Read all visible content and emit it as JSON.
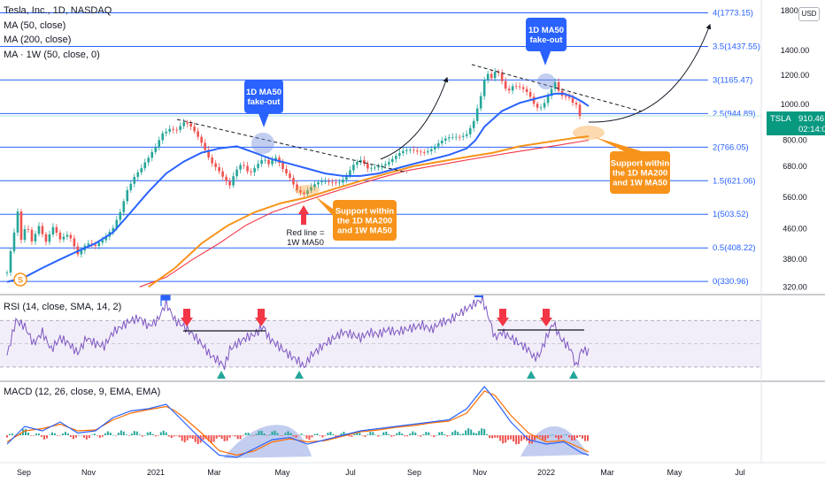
{
  "legend": {
    "symbol": "Tesla, Inc., 1D, NASDAQ",
    "ma50": "MA (50, close)",
    "ma200": "MA (200, close)",
    "ma1w": "MA · 1W (50, close, 0)"
  },
  "currency": "USD",
  "price_tag": {
    "symbol": "TSLA",
    "price": "910.46",
    "countdown": "02:14:05"
  },
  "colors": {
    "ma50": "#2962ff",
    "ma200": "#f23645",
    "ma1w": "#f7931a",
    "candle_up": "#26a69a",
    "candle_down": "#ef5350",
    "fib": "#2962ff",
    "rsi": "#7e57c2",
    "macd": "#2962ff",
    "signal": "#ff6d00"
  },
  "annotations": {
    "fakeout_left": [
      "1D MA50",
      "fake-out"
    ],
    "fakeout_right": [
      "1D MA50",
      "fake-out"
    ],
    "support_mid": [
      "Support within",
      "the 1D MA200",
      "and 1W MA50"
    ],
    "support_right": [
      "Support within",
      "the 1D MA200",
      "and 1W MA50"
    ],
    "red_line": [
      "Red line =",
      "1W MA50"
    ],
    "dividend_marker": "S"
  },
  "chart_data": [
    {
      "type": "candlestick",
      "title": "Tesla, Inc., 1D, NASDAQ",
      "scale": "log",
      "ylim": [
        310,
        1900
      ],
      "x_ticks": [
        "Sep",
        "Nov",
        "2021",
        "Mar",
        "May",
        "Jul",
        "Sep",
        "Nov",
        "2022",
        "Mar",
        "May",
        "Jul"
      ],
      "y_ticks": [
        "1800.00",
        "1400.00",
        "1200.00",
        "1000.00",
        "800.00",
        "680.00",
        "560.00",
        "460.00",
        "380.00",
        "320.00"
      ],
      "last_price": 910.46,
      "fib_levels": [
        {
          "label": "4(1773.15)",
          "value": 1773.15
        },
        {
          "label": "3.5(1437.55)",
          "value": 1437.55
        },
        {
          "label": "3(1165.47)",
          "value": 1165.47
        },
        {
          "label": "2.5(944.89)",
          "value": 944.89
        },
        {
          "label": "2(766.05)",
          "value": 766.05
        },
        {
          "label": "1.5(621.06)",
          "value": 621.06
        },
        {
          "label": "1(503.52)",
          "value": 503.52
        },
        {
          "label": "0.5(408.22)",
          "value": 408.22
        },
        {
          "label": "0(330.96)",
          "value": 330.96
        }
      ],
      "price_path": [
        [
          0,
          350
        ],
        [
          8,
          440
        ],
        [
          12,
          500
        ],
        [
          16,
          420
        ],
        [
          22,
          470
        ],
        [
          28,
          430
        ],
        [
          36,
          480
        ],
        [
          44,
          430
        ],
        [
          52,
          460
        ],
        [
          60,
          420
        ],
        [
          70,
          440
        ],
        [
          80,
          400
        ],
        [
          90,
          430
        ],
        [
          100,
          410
        ],
        [
          110,
          420
        ],
        [
          120,
          460
        ],
        [
          128,
          520
        ],
        [
          136,
          600
        ],
        [
          144,
          640
        ],
        [
          152,
          660
        ],
        [
          160,
          700
        ],
        [
          168,
          760
        ],
        [
          176,
          850
        ],
        [
          184,
          880
        ],
        [
          192,
          860
        ],
        [
          200,
          880
        ],
        [
          206,
          860
        ],
        [
          214,
          820
        ],
        [
          222,
          780
        ],
        [
          230,
          720
        ],
        [
          238,
          680
        ],
        [
          246,
          620
        ],
        [
          252,
          590
        ],
        [
          258,
          640
        ],
        [
          266,
          690
        ],
        [
          274,
          660
        ],
        [
          282,
          700
        ],
        [
          290,
          720
        ],
        [
          296,
          680
        ],
        [
          304,
          700
        ],
        [
          312,
          660
        ],
        [
          320,
          640
        ],
        [
          328,
          600
        ],
        [
          336,
          580
        ],
        [
          344,
          590
        ],
        [
          352,
          600
        ],
        [
          360,
          610
        ],
        [
          368,
          620
        ],
        [
          376,
          630
        ],
        [
          384,
          650
        ],
        [
          392,
          680
        ],
        [
          400,
          690
        ],
        [
          408,
          660
        ],
        [
          416,
          680
        ],
        [
          424,
          700
        ],
        [
          432,
          710
        ],
        [
          440,
          720
        ],
        [
          448,
          730
        ],
        [
          456,
          740
        ],
        [
          464,
          750
        ],
        [
          472,
          760
        ],
        [
          480,
          770
        ],
        [
          488,
          780
        ],
        [
          496,
          790
        ],
        [
          504,
          800
        ],
        [
          512,
          820
        ],
        [
          520,
          850
        ],
        [
          528,
          920
        ],
        [
          536,
          1050
        ],
        [
          542,
          1200
        ],
        [
          548,
          1150
        ],
        [
          554,
          1230
        ],
        [
          560,
          1160
        ],
        [
          566,
          1100
        ],
        [
          572,
          1150
        ],
        [
          578,
          1140
        ],
        [
          584,
          1100
        ],
        [
          590,
          1050
        ],
        [
          596,
          980
        ],
        [
          602,
          950
        ],
        [
          608,
          1010
        ],
        [
          614,
          1100
        ],
        [
          620,
          1180
        ],
        [
          626,
          1080
        ],
        [
          632,
          1050
        ],
        [
          638,
          1020
        ],
        [
          642,
          960
        ],
        [
          646,
          990
        ],
        [
          650,
          830
        ],
        [
          654,
          940
        ],
        [
          658,
          910
        ]
      ],
      "ma50_path": [
        [
          0,
          330
        ],
        [
          20,
          340
        ],
        [
          40,
          360
        ],
        [
          60,
          380
        ],
        [
          80,
          400
        ],
        [
          100,
          420
        ],
        [
          120,
          450
        ],
        [
          140,
          510
        ],
        [
          160,
          580
        ],
        [
          180,
          650
        ],
        [
          200,
          700
        ],
        [
          220,
          740
        ],
        [
          240,
          760
        ],
        [
          260,
          770
        ],
        [
          280,
          740
        ],
        [
          300,
          710
        ],
        [
          320,
          690
        ],
        [
          340,
          670
        ],
        [
          360,
          650
        ],
        [
          380,
          640
        ],
        [
          400,
          640
        ],
        [
          420,
          650
        ],
        [
          440,
          670
        ],
        [
          460,
          690
        ],
        [
          480,
          710
        ],
        [
          500,
          730
        ],
        [
          520,
          760
        ],
        [
          530,
          800
        ],
        [
          540,
          870
        ],
        [
          560,
          960
        ],
        [
          580,
          1010
        ],
        [
          600,
          1040
        ],
        [
          620,
          1070
        ],
        [
          630,
          1070
        ],
        [
          640,
          1050
        ],
        [
          650,
          1020
        ],
        [
          658,
          990
        ]
      ],
      "ma200_path": [
        [
          150,
          320
        ],
        [
          180,
          340
        ],
        [
          210,
          380
        ],
        [
          240,
          420
        ],
        [
          270,
          470
        ],
        [
          300,
          510
        ],
        [
          330,
          540
        ],
        [
          360,
          570
        ],
        [
          390,
          600
        ],
        [
          420,
          630
        ],
        [
          450,
          660
        ],
        [
          480,
          680
        ],
        [
          510,
          700
        ],
        [
          540,
          720
        ],
        [
          570,
          740
        ],
        [
          600,
          760
        ],
        [
          630,
          780
        ],
        [
          658,
          800
        ]
      ],
      "ma1w_path": [
        [
          160,
          320
        ],
        [
          190,
          360
        ],
        [
          220,
          420
        ],
        [
          250,
          470
        ],
        [
          280,
          510
        ],
        [
          310,
          540
        ],
        [
          340,
          560
        ],
        [
          370,
          590
        ],
        [
          400,
          620
        ],
        [
          430,
          650
        ],
        [
          460,
          680
        ],
        [
          490,
          700
        ],
        [
          520,
          720
        ],
        [
          550,
          740
        ],
        [
          580,
          770
        ],
        [
          610,
          790
        ],
        [
          640,
          810
        ],
        [
          658,
          820
        ]
      ]
    },
    {
      "type": "line",
      "title": "RSI (14, close, SMA, 14, 2)",
      "ylim": [
        20,
        90
      ],
      "y_ticks": [
        "75.00",
        "50.00",
        "25.00"
      ],
      "bands": [
        30,
        70
      ],
      "values_path": [
        [
          0,
          40
        ],
        [
          10,
          70
        ],
        [
          20,
          65
        ],
        [
          30,
          50
        ],
        [
          40,
          60
        ],
        [
          50,
          45
        ],
        [
          60,
          55
        ],
        [
          70,
          50
        ],
        [
          80,
          42
        ],
        [
          90,
          55
        ],
        [
          100,
          50
        ],
        [
          110,
          48
        ],
        [
          120,
          60
        ],
        [
          130,
          65
        ],
        [
          140,
          70
        ],
        [
          150,
          72
        ],
        [
          160,
          65
        ],
        [
          170,
          70
        ],
        [
          180,
          85
        ],
        [
          190,
          70
        ],
        [
          200,
          65
        ],
        [
          210,
          58
        ],
        [
          220,
          50
        ],
        [
          230,
          40
        ],
        [
          240,
          35
        ],
        [
          246,
          30
        ],
        [
          252,
          45
        ],
        [
          260,
          50
        ],
        [
          270,
          55
        ],
        [
          280,
          58
        ],
        [
          290,
          65
        ],
        [
          296,
          55
        ],
        [
          304,
          50
        ],
        [
          312,
          45
        ],
        [
          320,
          40
        ],
        [
          330,
          35
        ],
        [
          336,
          30
        ],
        [
          344,
          40
        ],
        [
          352,
          45
        ],
        [
          360,
          50
        ],
        [
          370,
          55
        ],
        [
          380,
          60
        ],
        [
          390,
          58
        ],
        [
          400,
          55
        ],
        [
          410,
          60
        ],
        [
          420,
          58
        ],
        [
          430,
          62
        ],
        [
          440,
          60
        ],
        [
          450,
          62
        ],
        [
          460,
          64
        ],
        [
          470,
          66
        ],
        [
          480,
          62
        ],
        [
          490,
          68
        ],
        [
          500,
          70
        ],
        [
          510,
          75
        ],
        [
          520,
          80
        ],
        [
          530,
          85
        ],
        [
          538,
          88
        ],
        [
          546,
          70
        ],
        [
          552,
          55
        ],
        [
          560,
          60
        ],
        [
          570,
          55
        ],
        [
          580,
          50
        ],
        [
          590,
          45
        ],
        [
          596,
          38
        ],
        [
          602,
          40
        ],
        [
          610,
          55
        ],
        [
          618,
          68
        ],
        [
          626,
          55
        ],
        [
          632,
          50
        ],
        [
          638,
          45
        ],
        [
          644,
          30
        ],
        [
          650,
          45
        ],
        [
          658,
          43
        ]
      ]
    },
    {
      "type": "line",
      "title": "MACD (12, 26, close, 9, EMA, EMA)",
      "y_ticks": [
        "100.00",
        "0.00"
      ],
      "macd_path": [
        [
          0,
          -20
        ],
        [
          20,
          20
        ],
        [
          40,
          10
        ],
        [
          60,
          30
        ],
        [
          80,
          5
        ],
        [
          100,
          10
        ],
        [
          120,
          40
        ],
        [
          140,
          55
        ],
        [
          160,
          60
        ],
        [
          180,
          70
        ],
        [
          190,
          50
        ],
        [
          200,
          30
        ],
        [
          220,
          -10
        ],
        [
          240,
          -45
        ],
        [
          260,
          -50
        ],
        [
          280,
          -30
        ],
        [
          300,
          -10
        ],
        [
          320,
          -5
        ],
        [
          340,
          -20
        ],
        [
          360,
          -10
        ],
        [
          380,
          0
        ],
        [
          400,
          10
        ],
        [
          420,
          15
        ],
        [
          440,
          20
        ],
        [
          460,
          25
        ],
        [
          480,
          30
        ],
        [
          500,
          35
        ],
        [
          520,
          60
        ],
        [
          540,
          110
        ],
        [
          552,
          80
        ],
        [
          570,
          30
        ],
        [
          590,
          -10
        ],
        [
          610,
          -20
        ],
        [
          630,
          -15
        ],
        [
          650,
          -40
        ],
        [
          658,
          -45
        ]
      ],
      "signal_path": [
        [
          0,
          -15
        ],
        [
          20,
          10
        ],
        [
          40,
          15
        ],
        [
          60,
          25
        ],
        [
          80,
          10
        ],
        [
          100,
          12
        ],
        [
          120,
          35
        ],
        [
          140,
          50
        ],
        [
          160,
          58
        ],
        [
          180,
          65
        ],
        [
          190,
          55
        ],
        [
          200,
          40
        ],
        [
          220,
          5
        ],
        [
          240,
          -35
        ],
        [
          260,
          -45
        ],
        [
          280,
          -35
        ],
        [
          300,
          -15
        ],
        [
          320,
          -8
        ],
        [
          340,
          -15
        ],
        [
          360,
          -12
        ],
        [
          380,
          -2
        ],
        [
          400,
          8
        ],
        [
          420,
          12
        ],
        [
          440,
          18
        ],
        [
          460,
          22
        ],
        [
          480,
          28
        ],
        [
          500,
          32
        ],
        [
          520,
          50
        ],
        [
          540,
          100
        ],
        [
          552,
          90
        ],
        [
          570,
          45
        ],
        [
          590,
          5
        ],
        [
          610,
          -15
        ],
        [
          630,
          -12
        ],
        [
          650,
          -30
        ],
        [
          658,
          -38
        ]
      ]
    }
  ]
}
